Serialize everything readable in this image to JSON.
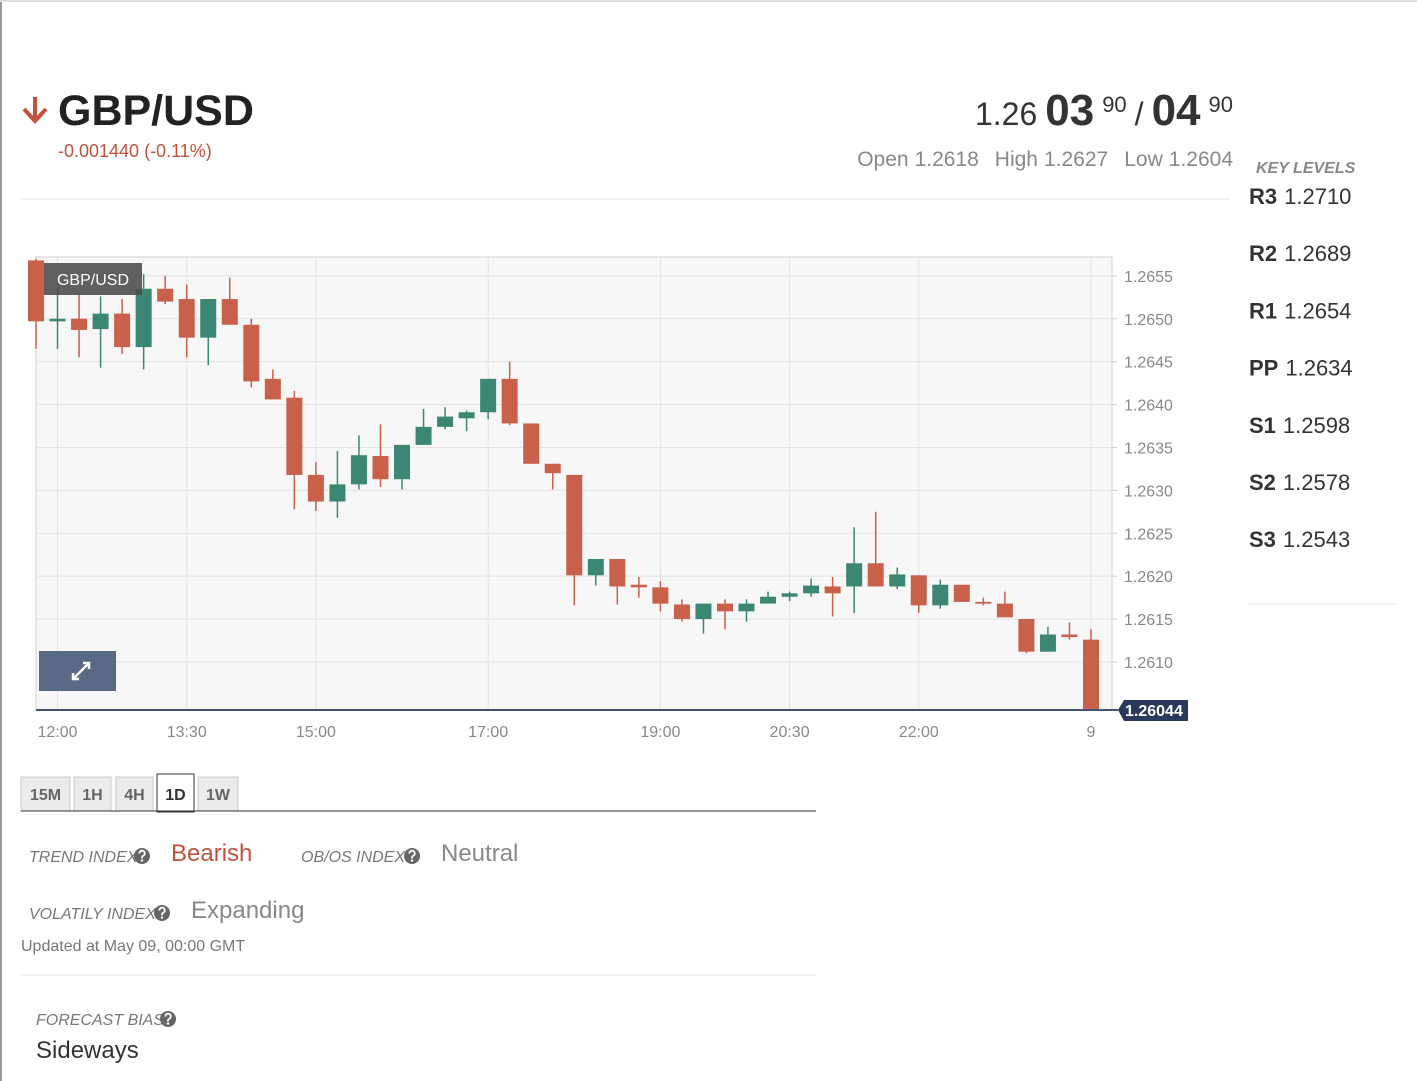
{
  "header": {
    "pair": "GBP/USD",
    "change": "-0.001440 (-0.11%)",
    "price": {
      "big": "1.26",
      "pips": "03",
      "fraction": "90",
      "separator": "/",
      "ask_pips": "04",
      "ask_fraction": "90"
    },
    "stats": [
      {
        "label": "Open",
        "value": "1.2618"
      },
      {
        "label": "High",
        "value": "1.2627"
      },
      {
        "label": "Low",
        "value": "1.2604"
      }
    ]
  },
  "key_levels": {
    "title": "KEY LEVELS",
    "levels": [
      {
        "name": "R3",
        "value": "1.2710"
      },
      {
        "name": "R2",
        "value": "1.2689"
      },
      {
        "name": "R1",
        "value": "1.2654"
      },
      {
        "name": "PP",
        "value": "1.2634"
      },
      {
        "name": "S1",
        "value": "1.2598"
      },
      {
        "name": "S2",
        "value": "1.2578"
      },
      {
        "name": "S3",
        "value": "1.2543"
      }
    ]
  },
  "chart_data": {
    "type": "candlestick",
    "title": "GBP/USD",
    "up_color": "#3b8773",
    "down_color": "#c8604a",
    "grid": true,
    "categories": [
      null,
      "12:00",
      null,
      null,
      null,
      null,
      null,
      "13:30",
      null,
      null,
      null,
      null,
      null,
      "15:00",
      null,
      null,
      null,
      null,
      null,
      null,
      null,
      "17:00",
      null,
      null,
      null,
      null,
      null,
      null,
      null,
      "19:00",
      null,
      null,
      null,
      null,
      null,
      "20:30",
      null,
      null,
      null,
      null,
      null,
      "22:00",
      null,
      null,
      null,
      null,
      null,
      null,
      null,
      "9"
    ],
    "open": [
      1.26568,
      1.26497,
      1.265,
      1.26488,
      1.26506,
      1.26467,
      1.26535,
      1.26523,
      1.26478,
      1.26523,
      1.26493,
      1.2643,
      1.26408,
      1.26318,
      1.26287,
      1.26307,
      1.2634,
      1.26313,
      1.26353,
      1.26374,
      1.26384,
      1.26391,
      1.2643,
      1.26378,
      1.26331,
      1.26318,
      1.26201,
      1.2622,
      1.2619,
      1.26187,
      1.26167,
      1.2615,
      1.26168,
      1.26159,
      1.26168,
      1.26176,
      1.2618,
      1.26188,
      1.26188,
      1.26215,
      1.26188,
      1.26201,
      1.26166,
      1.2619,
      1.2617,
      1.26168,
      1.2615,
      1.26112,
      1.26132,
      1.26126
    ],
    "high": [
      1.2657,
      1.26535,
      1.26529,
      1.26526,
      1.26523,
      1.26552,
      1.2655,
      1.2654,
      1.26523,
      1.26548,
      1.265,
      1.26441,
      1.26416,
      1.26333,
      1.26346,
      1.26364,
      1.26377,
      1.26353,
      1.26395,
      1.26397,
      1.26393,
      1.2643,
      1.2645,
      1.26378,
      1.26331,
      1.26318,
      1.2622,
      1.2622,
      1.26199,
      1.26194,
      1.26173,
      1.26168,
      1.26173,
      1.26173,
      1.26182,
      1.26182,
      1.26197,
      1.26199,
      1.26257,
      1.26275,
      1.2621,
      1.26201,
      1.26196,
      1.2619,
      1.26175,
      1.26182,
      1.2615,
      1.26141,
      1.26146,
      1.26138
    ],
    "low": [
      1.26465,
      1.26465,
      1.26455,
      1.26443,
      1.26459,
      1.26441,
      1.26517,
      1.26455,
      1.26446,
      1.26493,
      1.2642,
      1.26406,
      1.26278,
      1.26276,
      1.26268,
      1.26301,
      1.26304,
      1.26301,
      1.26353,
      1.26371,
      1.26369,
      1.26383,
      1.26376,
      1.26331,
      1.26301,
      1.26166,
      1.26189,
      1.26167,
      1.26175,
      1.26159,
      1.26147,
      1.26133,
      1.26138,
      1.26147,
      1.26168,
      1.26171,
      1.26176,
      1.26153,
      1.26157,
      1.26188,
      1.26185,
      1.26157,
      1.26162,
      1.2617,
      1.26166,
      1.26152,
      1.2611,
      1.26112,
      1.26126,
      1.26044
    ],
    "close": [
      1.26497,
      1.265,
      1.26487,
      1.26506,
      1.26467,
      1.26535,
      1.2652,
      1.26478,
      1.26523,
      1.26493,
      1.26427,
      1.26406,
      1.26318,
      1.26287,
      1.26307,
      1.26341,
      1.26313,
      1.26353,
      1.26374,
      1.26386,
      1.26391,
      1.2643,
      1.26378,
      1.26331,
      1.2632,
      1.26201,
      1.2622,
      1.26188,
      1.26187,
      1.26168,
      1.2615,
      1.26168,
      1.26159,
      1.26168,
      1.26176,
      1.2618,
      1.26189,
      1.2618,
      1.26215,
      1.26188,
      1.26202,
      1.26166,
      1.2619,
      1.2617,
      1.26168,
      1.26152,
      1.26112,
      1.26132,
      1.26129,
      1.26044
    ],
    "ylim": [
      1.26044,
      1.26572
    ],
    "yticks": [
      {
        "value": 1.261,
        "label": "1.2610"
      },
      1.2615,
      {
        "value": 1.262,
        "label": "1.2620"
      },
      1.2625,
      {
        "value": 1.263,
        "label": "1.2630"
      },
      1.2635,
      {
        "value": 1.264,
        "label": "1.2640"
      },
      1.2645,
      {
        "value": 1.265,
        "label": "1.2650"
      },
      1.2655
    ],
    "last_price": 1.26044
  },
  "timeframes": {
    "options": [
      "15M",
      "1H",
      "4H",
      "1D",
      "1W"
    ],
    "active": 3
  },
  "indices": [
    {
      "label": "TREND INDEX",
      "value": "Bearish",
      "color": "#c0523d"
    },
    {
      "label": "OB/OS INDEX",
      "value": "Neutral",
      "color": "#888888"
    },
    {
      "label": "VOLATILY INDEX",
      "value": "Expanding",
      "color": "#888888"
    }
  ],
  "updated": "Updated at May 09, 00:00 GMT",
  "forecast": {
    "label": "FORECAST BIAS",
    "value": "Sideways"
  }
}
